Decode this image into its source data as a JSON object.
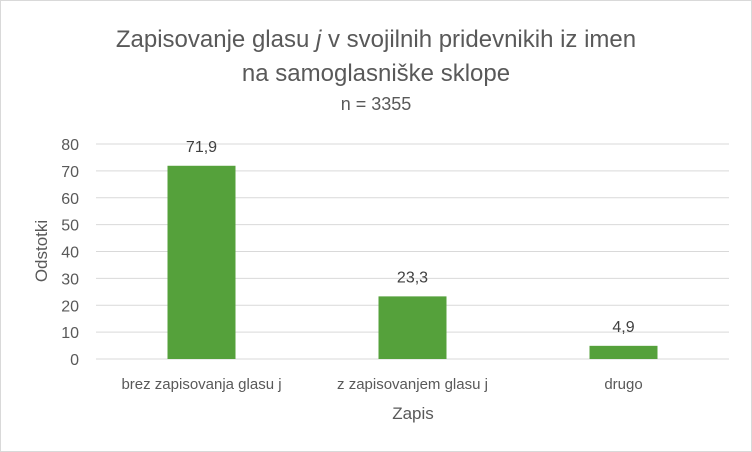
{
  "chart_data": {
    "type": "bar",
    "title_line1_before": "Zapisovanje glasu ",
    "title_line1_italic": "j",
    "title_line1_after": " v svojilnih pridevnikih iz imen",
    "title_line2": "na samoglasniške sklope",
    "subtitle": "n = 3355",
    "xlabel": "Zapis",
    "ylabel": "Odstotki",
    "categories": [
      "brez zapisovanja glasu j",
      "z zapisovanjem glasu j",
      "drugo"
    ],
    "values": [
      71.9,
      23.3,
      4.9
    ],
    "data_labels": [
      "71,9",
      "23,3",
      "4,9"
    ],
    "ylim": [
      0,
      80
    ],
    "yticks": [
      0,
      10,
      20,
      30,
      40,
      50,
      60,
      70,
      80
    ],
    "grid": true,
    "legend": "none",
    "bar_color": "#55a13b",
    "grid_color": "#d9d9d9",
    "text_color": "#595959"
  }
}
